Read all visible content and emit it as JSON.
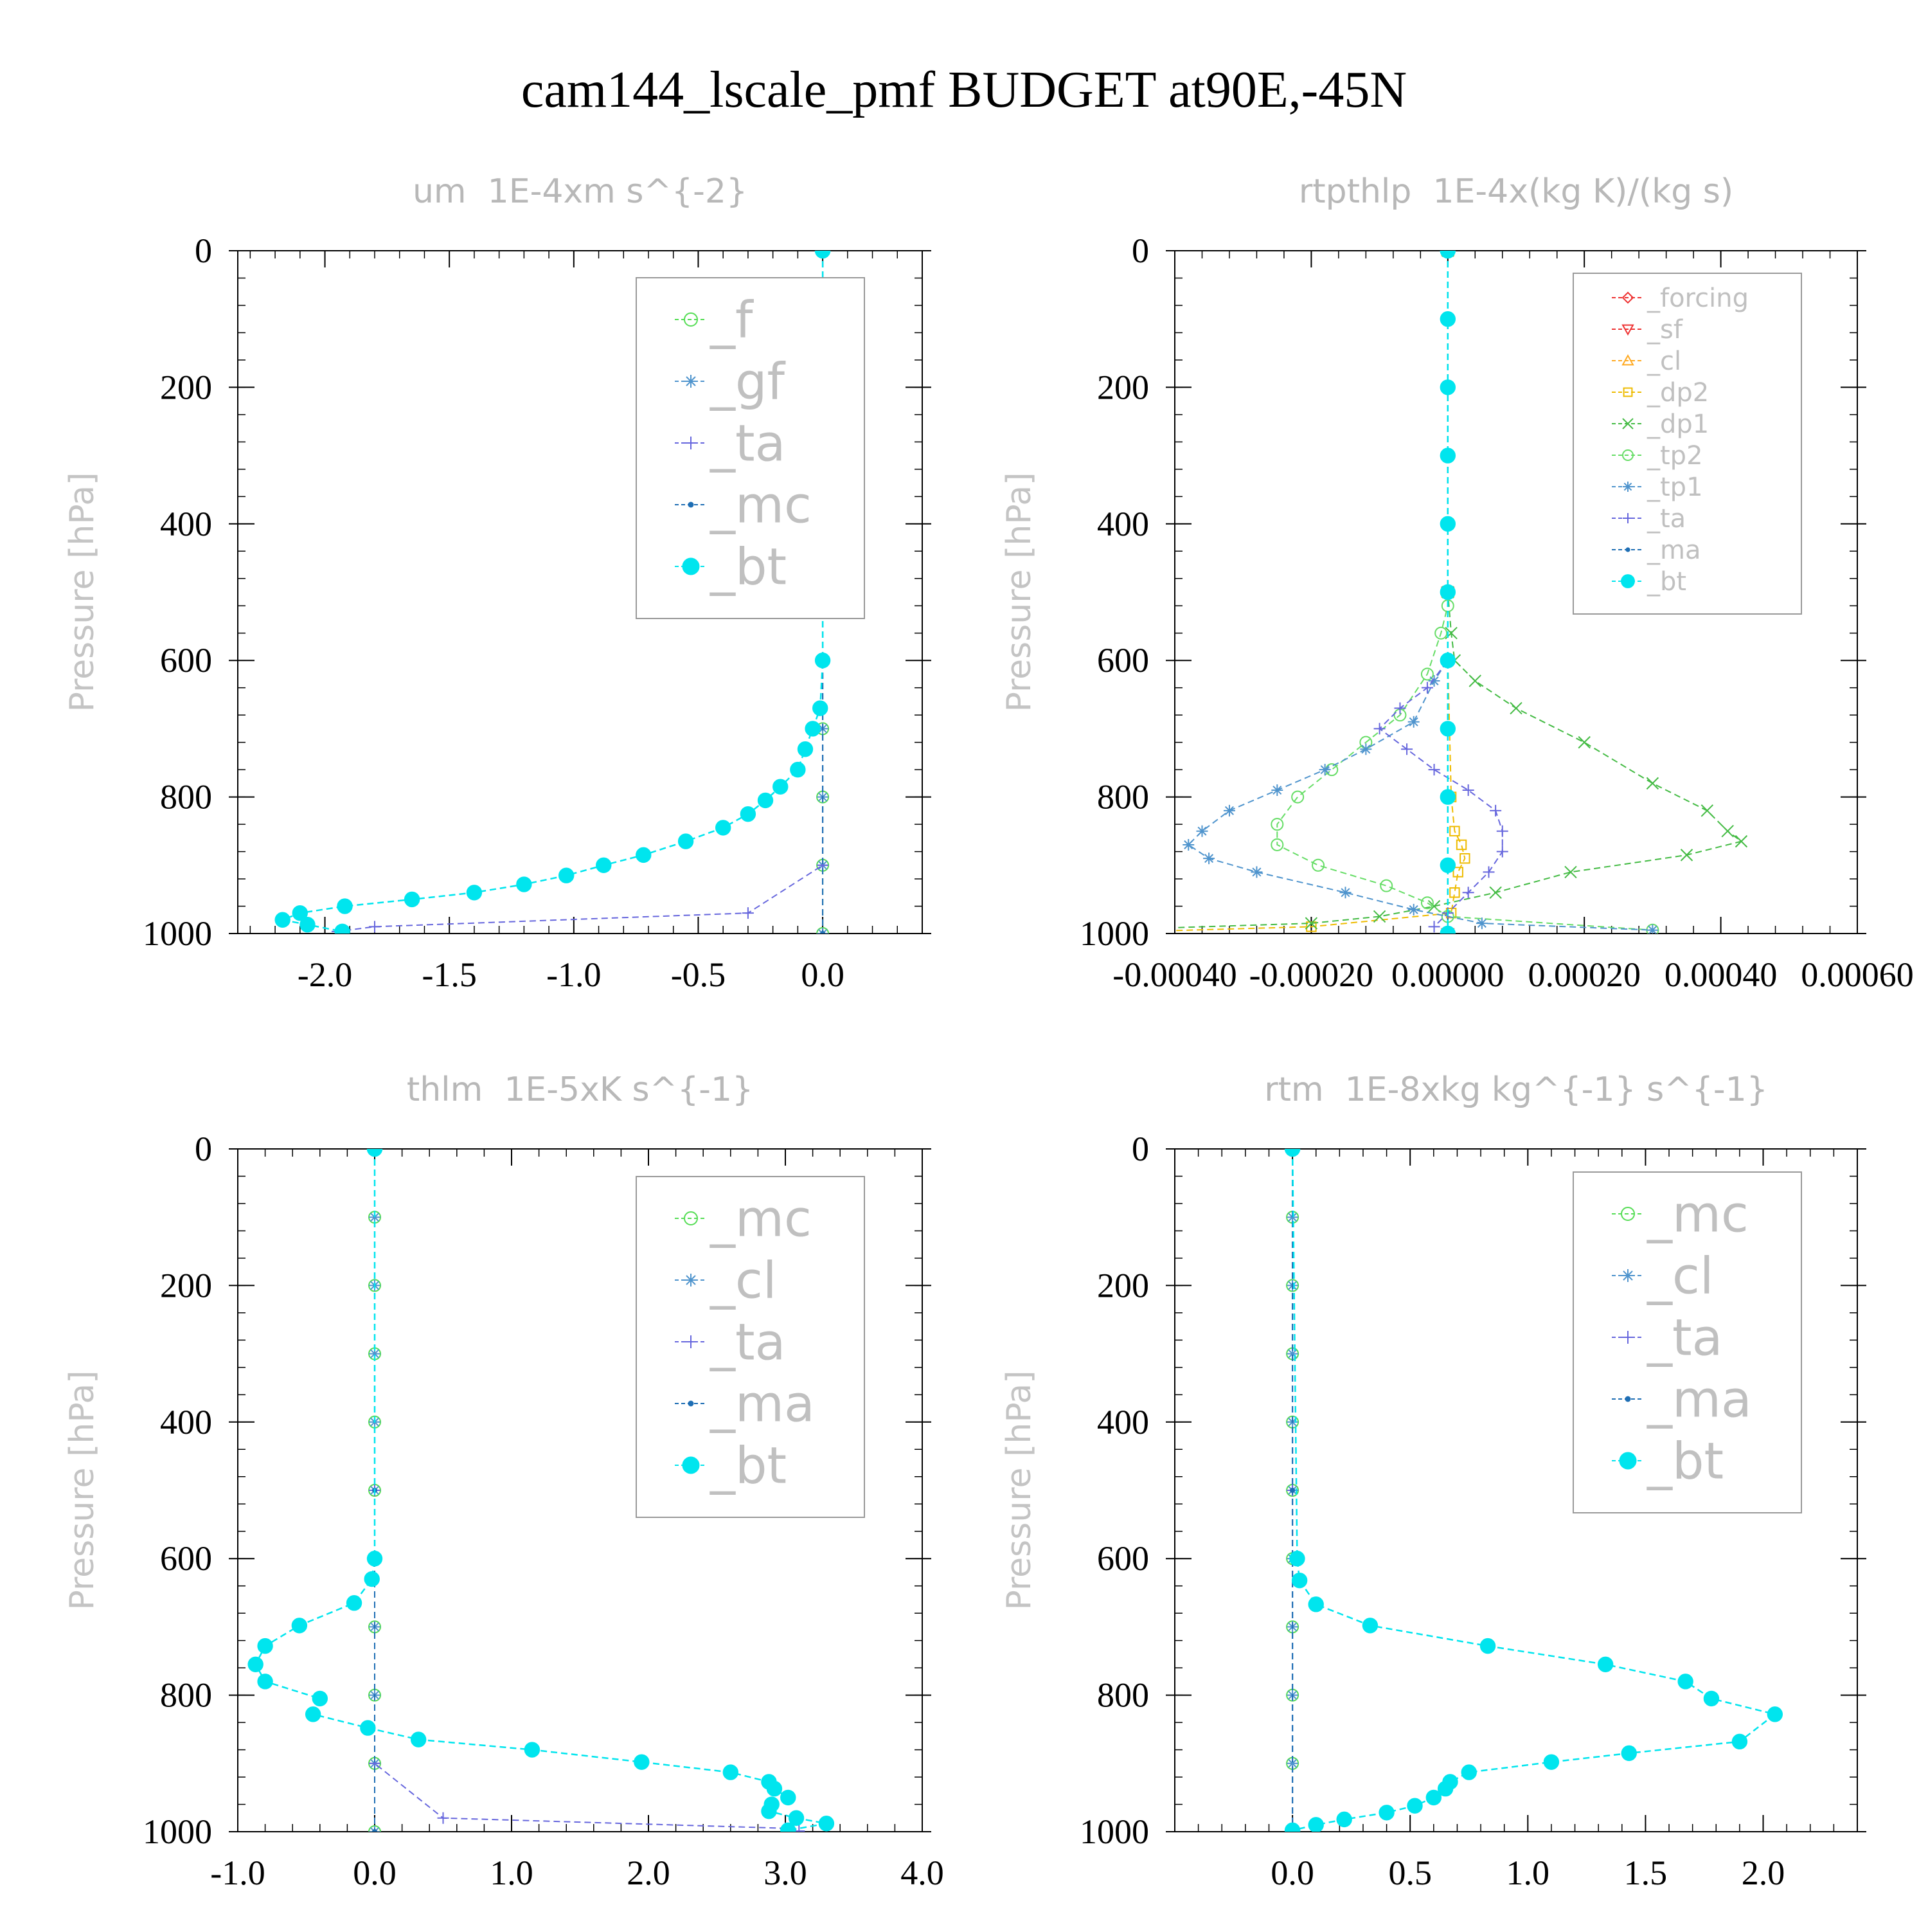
{
  "title": "cam144_lscale_pmf  BUDGET at90E,-45N",
  "chart_data": [
    {
      "type": "line",
      "title": "um  1E-4xm s^{-2}",
      "ylabel": "Pressure [hPa]",
      "xlabel": "",
      "y_range": [
        1000,
        0
      ],
      "y_ticks": [
        0,
        200,
        400,
        600,
        800,
        1000
      ],
      "x_range": [
        -2.35,
        0.4
      ],
      "x_ticks": [
        -2.0,
        -1.5,
        -1.0,
        -0.5,
        0.0
      ],
      "x_tick_labels": [
        "-2.0",
        "-1.5",
        "-1.0",
        "-0.5",
        "0.0"
      ],
      "legend_position": "top-right",
      "series": [
        {
          "name": "_f",
          "color": "#55dd55",
          "marker": "circle",
          "y": [
            0,
            100,
            200,
            300,
            400,
            500,
            600,
            700,
            800,
            900,
            1000
          ],
          "x": [
            0,
            0,
            0,
            0,
            0,
            0,
            0,
            0,
            0,
            0,
            0
          ]
        },
        {
          "name": "_gf",
          "color": "#4f94cd",
          "marker": "star",
          "y": [
            0,
            100,
            200,
            300,
            400,
            500,
            600,
            700,
            800,
            900,
            1000
          ],
          "x": [
            0,
            0,
            0,
            0,
            0,
            0,
            0,
            0,
            0,
            0,
            0
          ]
        },
        {
          "name": "_ta",
          "color": "#6666dd",
          "marker": "plus",
          "y": [
            0,
            500,
            900,
            970,
            990,
            997
          ],
          "x": [
            0,
            0,
            0,
            -0.3,
            -1.8,
            -1.95
          ]
        },
        {
          "name": "_mc",
          "color": "#1e6eb4",
          "marker": "dot",
          "y": [
            0,
            500,
            1000
          ],
          "x": [
            0,
            0,
            0
          ]
        },
        {
          "name": "_bt",
          "color": "#00e5ee",
          "marker": "filled-circle",
          "y": [
            0,
            600,
            670,
            700,
            730,
            760,
            785,
            805,
            825,
            845,
            865,
            885,
            900,
            915,
            928,
            940,
            950,
            960,
            970,
            980,
            987,
            997
          ],
          "x": [
            0,
            0,
            -0.01,
            -0.04,
            -0.07,
            -0.1,
            -0.17,
            -0.23,
            -0.3,
            -0.4,
            -0.55,
            -0.72,
            -0.88,
            -1.03,
            -1.2,
            -1.4,
            -1.65,
            -1.92,
            -2.1,
            -2.17,
            -2.07,
            -1.93
          ]
        }
      ]
    },
    {
      "type": "line",
      "title": "rtpthlp  1E-4x(kg K)/(kg s)",
      "ylabel": "Pressure [hPa]",
      "xlabel": "",
      "y_range": [
        1000,
        0
      ],
      "y_ticks": [
        0,
        200,
        400,
        600,
        800,
        1000
      ],
      "x_range": [
        -0.0004,
        0.0006
      ],
      "x_ticks": [
        -0.0004,
        -0.0002,
        0.0,
        0.0002,
        0.0004,
        0.0006
      ],
      "x_tick_labels": [
        "-0.00040",
        "-0.00020",
        "0.00000",
        "0.00020",
        "0.00040",
        "0.00060"
      ],
      "legend_position": "top-right",
      "series": [
        {
          "name": "_forcing",
          "color": "#ee3333",
          "marker": "diamond",
          "y": [
            0,
            500,
            1000
          ],
          "x": [
            0,
            0,
            0
          ]
        },
        {
          "name": "_sf",
          "color": "#ee3333",
          "marker": "triangle-down",
          "y": [
            0,
            500,
            1000
          ],
          "x": [
            0,
            0,
            0
          ]
        },
        {
          "name": "_cl",
          "color": "#ffaa22",
          "marker": "triangle-up",
          "y": [
            0,
            500,
            1000
          ],
          "x": [
            0,
            0,
            0
          ]
        },
        {
          "name": "_dp2",
          "color": "#eebb00",
          "marker": "square",
          "y": [
            0,
            600,
            800,
            850,
            870,
            890,
            910,
            940,
            970,
            990,
            997
          ],
          "x": [
            0,
            0,
            5e-06,
            1e-05,
            2e-05,
            2.5e-05,
            1.5e-05,
            1e-05,
            5e-06,
            -0.0002,
            -0.00045
          ]
        },
        {
          "name": "_dp1",
          "color": "#44bb44",
          "marker": "x",
          "y": [
            0,
            500,
            560,
            600,
            630,
            670,
            720,
            780,
            820,
            850,
            865,
            885,
            910,
            940,
            960,
            975,
            985,
            993
          ],
          "x": [
            0,
            0,
            5e-06,
            1e-05,
            4e-05,
            0.0001,
            0.0002,
            0.0003,
            0.00038,
            0.00041,
            0.00043,
            0.00035,
            0.00018,
            7e-05,
            -2e-05,
            -0.0001,
            -0.0002,
            -0.00045
          ]
        },
        {
          "name": "_tp2",
          "color": "#66dd66",
          "marker": "circle",
          "y": [
            0,
            520,
            560,
            620,
            680,
            720,
            760,
            800,
            840,
            870,
            900,
            930,
            955,
            975,
            995
          ],
          "x": [
            0,
            0,
            -1e-05,
            -3e-05,
            -7e-05,
            -0.00012,
            -0.00017,
            -0.00022,
            -0.00025,
            -0.00025,
            -0.00019,
            -9e-05,
            -3e-05,
            0.0,
            0.0003
          ]
        },
        {
          "name": "_tp1",
          "color": "#4f94cd",
          "marker": "star",
          "y": [
            0,
            600,
            630,
            690,
            730,
            760,
            790,
            820,
            850,
            870,
            890,
            910,
            940,
            965,
            985,
            995
          ],
          "x": [
            0,
            0,
            -2e-05,
            -5e-05,
            -0.00012,
            -0.00018,
            -0.00025,
            -0.00032,
            -0.00036,
            -0.00038,
            -0.00035,
            -0.00028,
            -0.00015,
            -5e-05,
            5e-05,
            0.0003
          ]
        },
        {
          "name": "_ta",
          "color": "#6666dd",
          "marker": "plus",
          "y": [
            0,
            600,
            640,
            670,
            700,
            730,
            760,
            790,
            820,
            850,
            880,
            910,
            940,
            970,
            990
          ],
          "x": [
            0,
            0,
            -3e-05,
            -7e-05,
            -0.0001,
            -6e-05,
            -2e-05,
            3e-05,
            7e-05,
            8e-05,
            8e-05,
            6e-05,
            3e-05,
            0.0,
            -2e-05
          ]
        },
        {
          "name": "_ma",
          "color": "#1e6eb4",
          "marker": "dot",
          "y": [
            0,
            500,
            1000
          ],
          "x": [
            0,
            0,
            0
          ]
        },
        {
          "name": "_bt",
          "color": "#00e5ee",
          "marker": "filled-circle",
          "y": [
            0,
            100,
            200,
            300,
            400,
            500,
            600,
            700,
            800,
            900,
            1000
          ],
          "x": [
            0,
            0,
            0,
            0,
            0,
            0,
            0,
            0,
            0,
            0,
            0
          ]
        }
      ]
    },
    {
      "type": "line",
      "title": "thlm  1E-5xK s^{-1}",
      "ylabel": "Pressure [hPa]",
      "xlabel": "",
      "y_range": [
        1000,
        0
      ],
      "y_ticks": [
        0,
        200,
        400,
        600,
        800,
        1000
      ],
      "x_range": [
        -1.0,
        4.0
      ],
      "x_ticks": [
        -1.0,
        0.0,
        1.0,
        2.0,
        3.0,
        4.0
      ],
      "x_tick_labels": [
        "-1.0",
        "0.0",
        "1.0",
        "2.0",
        "3.0",
        "4.0"
      ],
      "legend_position": "top-right",
      "series": [
        {
          "name": "_mc",
          "color": "#55dd55",
          "marker": "circle",
          "y": [
            0,
            100,
            200,
            300,
            400,
            500,
            600,
            700,
            800,
            900,
            1000
          ],
          "x": [
            0,
            0,
            0,
            0,
            0,
            0,
            0,
            0,
            0,
            0,
            0
          ]
        },
        {
          "name": "_cl",
          "color": "#4f94cd",
          "marker": "star",
          "y": [
            0,
            100,
            200,
            300,
            400,
            500,
            600,
            700,
            800,
            900,
            1000
          ],
          "x": [
            0,
            0,
            0,
            0,
            0,
            0,
            0,
            0,
            0,
            0,
            0
          ]
        },
        {
          "name": "_ta",
          "color": "#6666dd",
          "marker": "plus",
          "y": [
            0,
            500,
            900,
            980,
            995,
            999
          ],
          "x": [
            0,
            0,
            0,
            0.5,
            3.0,
            3.1
          ]
        },
        {
          "name": "_ma",
          "color": "#1e6eb4",
          "marker": "dot",
          "y": [
            0,
            500,
            1000
          ],
          "x": [
            0,
            0,
            0
          ]
        },
        {
          "name": "_bt",
          "color": "#00e5ee",
          "marker": "filled-circle",
          "y": [
            0,
            600,
            630,
            665,
            698,
            728,
            755,
            780,
            805,
            828,
            848,
            865,
            880,
            898,
            913,
            927,
            937,
            950,
            960,
            970,
            980,
            988,
            998
          ],
          "x": [
            0,
            0,
            -0.02,
            -0.15,
            -0.55,
            -0.8,
            -0.87,
            -0.8,
            -0.4,
            -0.45,
            -0.05,
            0.32,
            1.15,
            1.95,
            2.6,
            2.88,
            2.92,
            3.02,
            2.9,
            2.88,
            3.08,
            3.3,
            3.02
          ]
        }
      ]
    },
    {
      "type": "line",
      "title": "rtm  1E-8xkg kg^{-1} s^{-1}",
      "ylabel": "Pressure [hPa]",
      "xlabel": "",
      "y_range": [
        1000,
        0
      ],
      "y_ticks": [
        0,
        200,
        400,
        600,
        800,
        1000
      ],
      "x_range": [
        -0.5,
        2.4
      ],
      "x_ticks": [
        0.0,
        0.5,
        1.0,
        1.5,
        2.0
      ],
      "x_tick_labels": [
        "0.0",
        "0.5",
        "1.0",
        "1.5",
        "2.0"
      ],
      "legend_position": "top-right",
      "series": [
        {
          "name": "_mc",
          "color": "#55dd55",
          "marker": "circle",
          "y": [
            0,
            100,
            200,
            300,
            400,
            500,
            600,
            700,
            800,
            900,
            1000
          ],
          "x": [
            0,
            0,
            0,
            0,
            0,
            0,
            0,
            0,
            0,
            0,
            0
          ]
        },
        {
          "name": "_cl",
          "color": "#4f94cd",
          "marker": "star",
          "y": [
            0,
            100,
            200,
            300,
            400,
            500,
            600,
            700,
            800,
            900,
            1000
          ],
          "x": [
            0,
            0,
            0,
            0,
            0,
            0,
            0,
            0,
            0,
            0,
            0
          ]
        },
        {
          "name": "_ta",
          "color": "#6666dd",
          "marker": "plus",
          "y": [
            0,
            500,
            1000
          ],
          "x": [
            0,
            0,
            0
          ]
        },
        {
          "name": "_ma",
          "color": "#1e6eb4",
          "marker": "dot",
          "y": [
            0,
            500,
            1000
          ],
          "x": [
            0,
            0,
            0
          ]
        },
        {
          "name": "_bt",
          "color": "#00e5ee",
          "marker": "filled-circle",
          "y": [
            0,
            600,
            632,
            667,
            698,
            728,
            755,
            780,
            805,
            828,
            868,
            885,
            898,
            913,
            927,
            937,
            950,
            962,
            972,
            982,
            990,
            998
          ],
          "x": [
            0,
            0.02,
            0.03,
            0.1,
            0.33,
            0.83,
            1.33,
            1.67,
            1.78,
            2.05,
            1.9,
            1.43,
            1.1,
            0.75,
            0.67,
            0.65,
            0.6,
            0.52,
            0.4,
            0.22,
            0.1,
            0.0
          ]
        }
      ]
    }
  ]
}
